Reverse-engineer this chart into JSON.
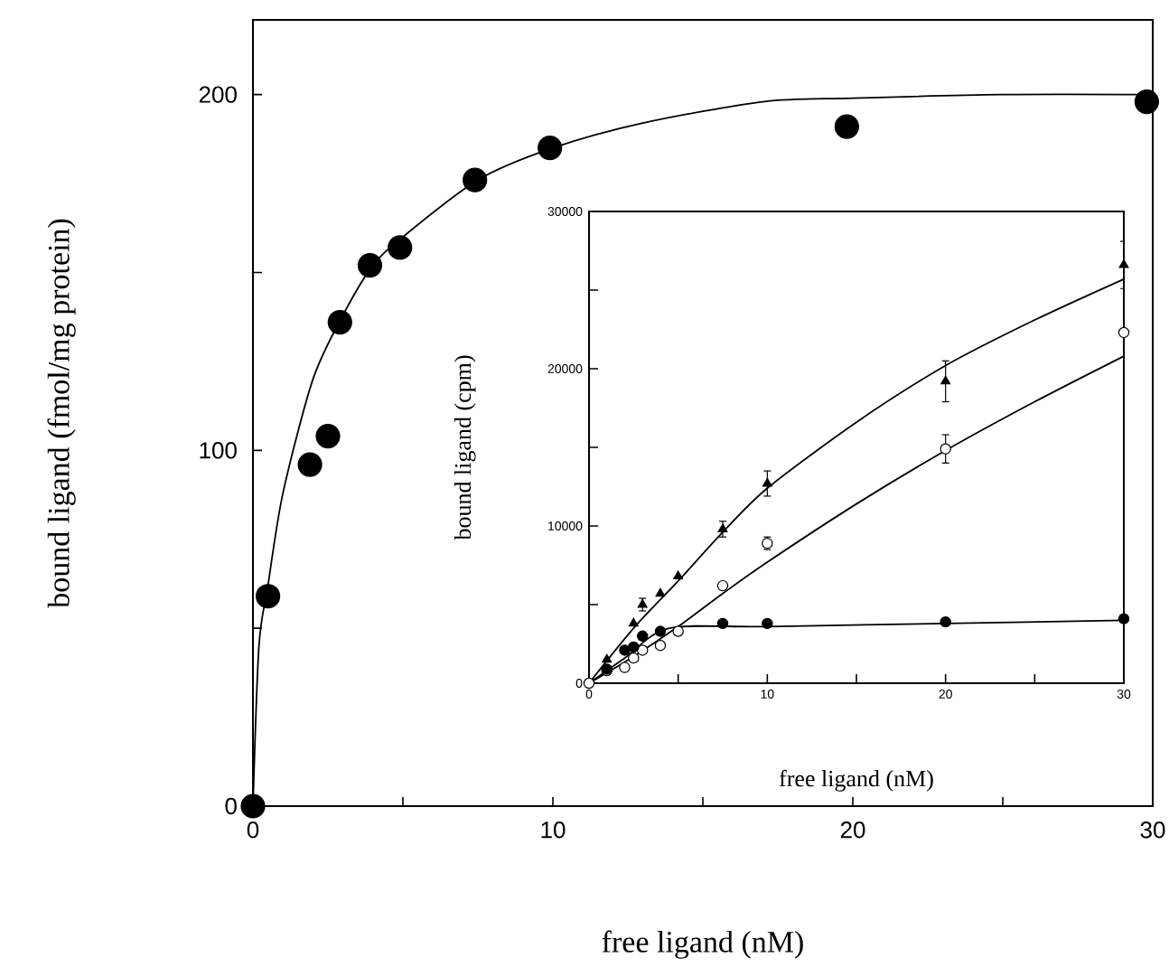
{
  "chart_data": [
    {
      "type": "scatter",
      "xlabel": "free ligand (nM)",
      "ylabel": "bound ligand (fmol/mg protein)",
      "xlim": [
        0,
        30
      ],
      "ylim": [
        0,
        221
      ],
      "xticks": [
        0,
        {
          "value": 5,
          "label": null
        },
        10,
        {
          "value": 15,
          "label": null
        },
        20,
        {
          "value": 25,
          "label": null
        },
        30
      ],
      "yticks": [
        0,
        {
          "value": 50,
          "label": null
        },
        100,
        {
          "value": 150,
          "label": null
        },
        200
      ],
      "series": [
        {
          "type": "scatter",
          "color": "#000000",
          "marker": "circle",
          "x": [
            0,
            0.5,
            1.9,
            2.5,
            2.9,
            3.9,
            4.9,
            7.4,
            9.9,
            19.8,
            29.8
          ],
          "values": [
            0,
            59,
            96,
            104,
            136,
            152,
            157,
            176,
            185,
            191,
            198
          ]
        },
        {
          "type": "line",
          "color": "#000000",
          "marker": "none",
          "x": [
            0,
            0.2,
            0.5,
            1,
            2,
            3,
            4,
            5,
            7.5,
            10,
            13,
            17,
            20,
            25,
            30
          ],
          "values": [
            0,
            45,
            62,
            88,
            120,
            138,
            152,
            160,
            176,
            185,
            192,
            198,
            199,
            200,
            200
          ]
        }
      ]
    },
    {
      "type": "scatter",
      "xlabel": "free ligand (nM)",
      "ylabel": "bound ligand (cpm)",
      "xlim": [
        0,
        30
      ],
      "ylim": [
        0,
        30000
      ],
      "xticks": [
        0,
        {
          "value": 5,
          "label": null
        },
        10,
        {
          "value": 15,
          "label": null
        },
        20,
        {
          "value": 25,
          "label": null
        },
        30
      ],
      "yticks": [
        0,
        {
          "value": 5000,
          "label": null
        },
        10000,
        {
          "value": 15000,
          "label": null
        },
        20000,
        {
          "value": 25000,
          "label": null
        },
        30000
      ],
      "series": [
        {
          "type": "scatter",
          "color": "#000000",
          "marker": "triangle",
          "x": [
            1,
            2,
            2.5,
            3,
            4,
            5,
            7.5,
            10,
            20,
            30
          ],
          "values": [
            1500,
            null,
            3800,
            5000,
            5700,
            6800,
            9800,
            12700,
            19200,
            26600
          ],
          "errors": [
            null,
            null,
            null,
            400,
            null,
            null,
            500,
            800,
            1300,
            1500
          ]
        },
        {
          "type": "scatter",
          "color": "#ffffff",
          "marker": "circle",
          "x": [
            0,
            1,
            2,
            2.5,
            3,
            4,
            5,
            7.5,
            10,
            20,
            30
          ],
          "values": [
            0,
            800,
            1000,
            1600,
            2100,
            2400,
            3300,
            6200,
            8900,
            14900,
            22300
          ],
          "errors": [
            null,
            null,
            null,
            null,
            null,
            null,
            null,
            null,
            400,
            900,
            null
          ]
        },
        {
          "type": "scatter",
          "color": "#000000",
          "marker": "circle",
          "x": [
            1,
            2,
            2.5,
            3,
            4,
            7.5,
            10,
            20,
            30
          ],
          "values": [
            900,
            2100,
            2300,
            3000,
            3300,
            3800,
            3800,
            3900,
            4100
          ]
        },
        {
          "type": "line",
          "color": "#000000",
          "marker": "none",
          "x": [
            0,
            2.5,
            5,
            7.5,
            10,
            15,
            20,
            25,
            30
          ],
          "values": [
            0,
            3500,
            6500,
            9600,
            12400,
            16600,
            20200,
            23100,
            25700
          ]
        },
        {
          "type": "line",
          "color": "#000000",
          "marker": "none",
          "x": [
            0,
            2.5,
            5,
            7.5,
            10,
            15,
            20,
            25,
            30
          ],
          "values": [
            0,
            1700,
            3600,
            5700,
            7700,
            11400,
            14800,
            17900,
            20800
          ]
        },
        {
          "type": "line",
          "color": "#000000",
          "marker": "none",
          "x": [
            0,
            2,
            4.5,
            10,
            20,
            30
          ],
          "values": [
            0,
            1600,
            3500,
            3600,
            3800,
            4000
          ]
        }
      ]
    }
  ]
}
